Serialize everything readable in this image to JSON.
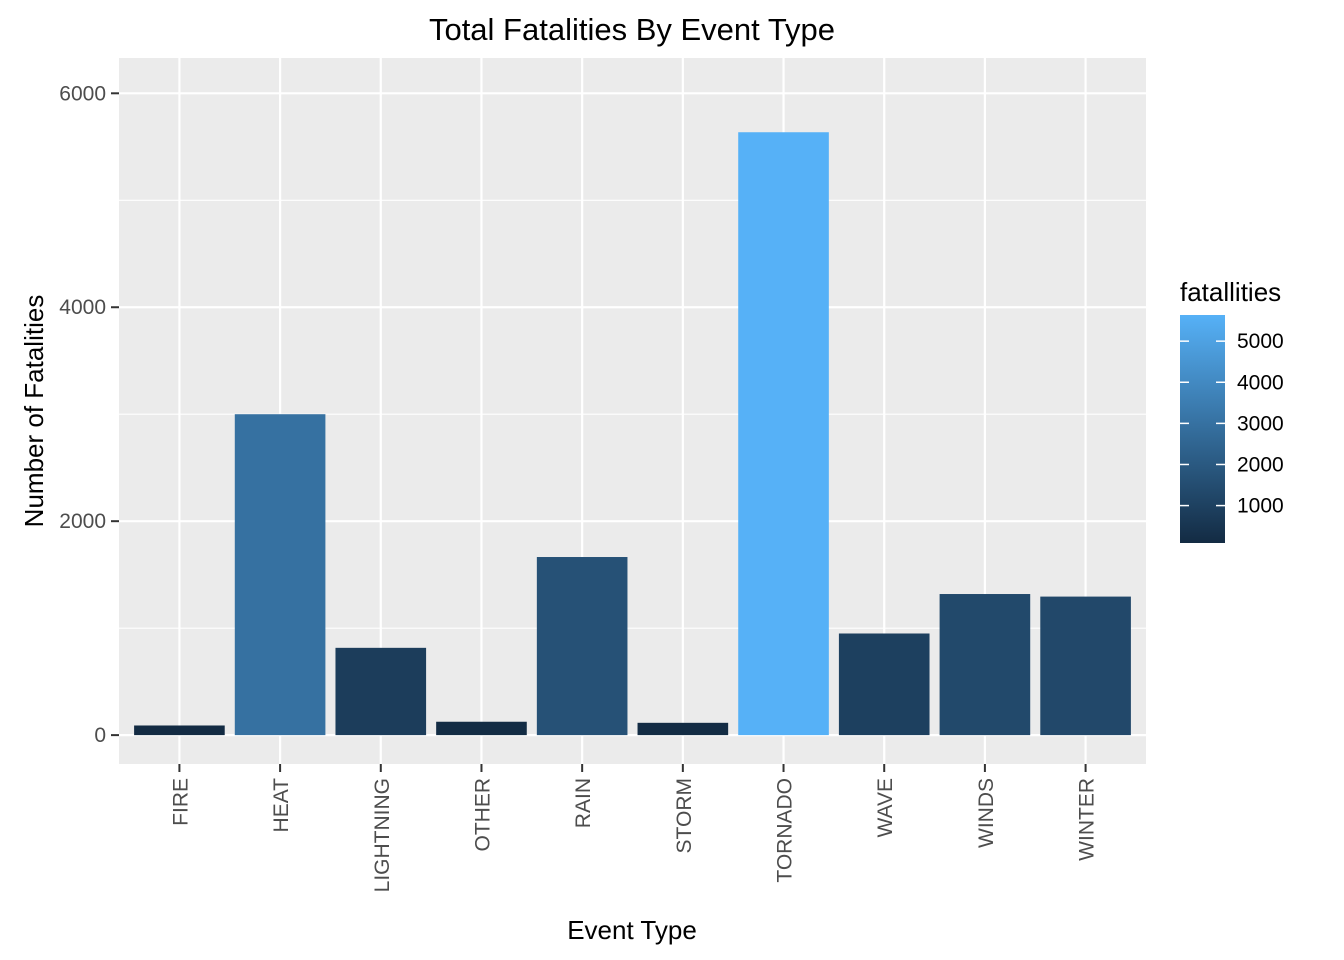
{
  "chart_data": {
    "type": "bar",
    "title": "Total Fatalities By Event Type",
    "xlabel": "Event Type",
    "ylabel": "Number of Fatalities",
    "categories": [
      "FIRE",
      "HEAT",
      "LIGHTNING",
      "OTHER",
      "RAIN",
      "STORM",
      "TORNADO",
      "WAVE",
      "WINDS",
      "WINTER"
    ],
    "values": [
      90,
      3000,
      816,
      125,
      1665,
      115,
      5636,
      950,
      1319,
      1295
    ],
    "ylim": [
      -270,
      6330
    ],
    "yticks": [
      0,
      2000,
      4000,
      6000
    ],
    "y_tick_labels": [
      "0",
      "2000",
      "4000",
      "6000"
    ],
    "grid": true,
    "legend": {
      "title": "fatallities",
      "position": "right",
      "type": "colorbar",
      "range": [
        90,
        5636
      ],
      "ticks": [
        1000,
        2000,
        3000,
        4000,
        5000
      ],
      "tick_labels": [
        "1000",
        "2000",
        "3000",
        "4000",
        "5000"
      ]
    },
    "colors": {
      "low": "#132b43",
      "high": "#56b1f7",
      "panel_background": "#ebebeb",
      "grid": "#ffffff"
    }
  }
}
